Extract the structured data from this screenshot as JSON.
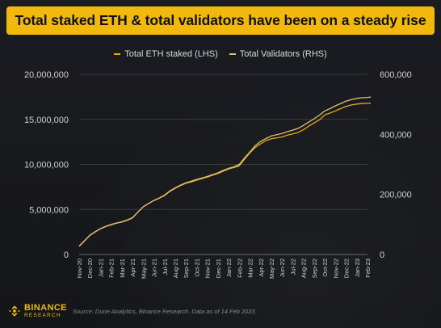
{
  "title": "Total staked ETH & total validators have been on a steady rise",
  "colors": {
    "accent": "#f0b90b",
    "eth_line": "#e6a817",
    "validators_line": "#d9c27a",
    "axis_text": "#d0d0d0"
  },
  "legend": [
    {
      "label": "Total ETH staked (LHS)"
    },
    {
      "label": "Total Validators (RHS)"
    }
  ],
  "footer": {
    "brand": "BINANCE",
    "brand_sub": "RESEARCH",
    "source": "Source: Dune Analytics, Binance Research. Data as of 14 Feb 2023."
  },
  "chart_data": {
    "type": "line",
    "title": "Total staked ETH & total validators have been on a steady rise",
    "grid": true,
    "legend_position": "top-center",
    "x_labels": [
      "Nov-20",
      "Dec-20",
      "Jan-21",
      "Feb-21",
      "Mar-21",
      "Apr-21",
      "May-21",
      "Jun-21",
      "Jul-21",
      "Aug-21",
      "Sep-21",
      "Oct-21",
      "Nov-21",
      "Dec-21",
      "Jan-22",
      "Feb-22",
      "Mar-22",
      "Apr-22",
      "May-22",
      "Jun-22",
      "Jul-22",
      "Aug-22",
      "Sep-22",
      "Oct-22",
      "Nov-22",
      "Dec-22",
      "Jan-23",
      "Feb-23"
    ],
    "y_left": {
      "ylim": [
        0,
        20000000
      ],
      "ticks": [
        0,
        5000000,
        10000000,
        15000000,
        20000000
      ],
      "tick_labels": [
        "0",
        "5,000,000",
        "10,000,000",
        "15,000,000",
        "20,000,000"
      ]
    },
    "y_right": {
      "ylim": [
        0,
        600000
      ],
      "ticks": [
        0,
        200000,
        400000,
        600000
      ],
      "tick_labels": [
        "0",
        "200,000",
        "400,000",
        "600,000"
      ]
    },
    "series": [
      {
        "name": "Total ETH staked (LHS)",
        "axis": "left",
        "x": [
          0,
          0.5,
          1,
          1.5,
          2,
          2.5,
          3,
          3.5,
          4,
          4.5,
          5,
          5.5,
          6,
          6.5,
          7,
          7.5,
          8,
          8.5,
          9,
          9.5,
          10,
          10.5,
          11,
          11.5,
          12,
          12.5,
          13,
          13.5,
          14,
          14.5,
          15,
          15.5,
          16,
          16.5,
          17,
          17.5,
          18,
          18.5,
          19,
          19.5,
          20,
          20.5,
          21,
          21.5,
          22,
          22.5,
          23,
          23.5,
          24,
          24.5,
          25,
          25.5,
          26,
          26.5,
          27,
          27.3
        ],
        "values": [
          900000,
          1500000,
          2100000,
          2500000,
          2850000,
          3100000,
          3300000,
          3480000,
          3600000,
          3800000,
          4050000,
          4700000,
          5300000,
          5650000,
          6000000,
          6250000,
          6550000,
          7000000,
          7350000,
          7650000,
          7900000,
          8050000,
          8250000,
          8420000,
          8600000,
          8800000,
          9000000,
          9250000,
          9500000,
          9650000,
          9850000,
          10600000,
          11300000,
          11900000,
          12300000,
          12650000,
          12850000,
          12950000,
          13050000,
          13250000,
          13380000,
          13550000,
          13850000,
          14250000,
          14600000,
          14950000,
          15500000,
          15700000,
          15950000,
          16200000,
          16450000,
          16600000,
          16700000,
          16750000,
          16780000,
          16800000
        ]
      },
      {
        "name": "Total Validators (RHS)",
        "axis": "right",
        "x": [
          0,
          0.5,
          1,
          1.5,
          2,
          2.5,
          3,
          3.5,
          4,
          4.5,
          5,
          5.5,
          6,
          6.5,
          7,
          7.5,
          8,
          8.5,
          9,
          9.5,
          10,
          10.5,
          11,
          11.5,
          12,
          12.5,
          13,
          13.5,
          14,
          14.5,
          15,
          15.5,
          16,
          16.5,
          17,
          17.5,
          18,
          18.5,
          19,
          19.5,
          20,
          20.5,
          21,
          21.5,
          22,
          22.5,
          23,
          23.5,
          24,
          24.5,
          25,
          25.5,
          26,
          26.5,
          27,
          27.3
        ],
        "values": [
          28000,
          46000,
          64000,
          76000,
          86000,
          94000,
          100000,
          105000,
          109000,
          115000,
          123000,
          141000,
          159000,
          170000,
          180000,
          188000,
          198000,
          212000,
          222000,
          231000,
          239000,
          244000,
          250000,
          255000,
          260000,
          266000,
          272000,
          280000,
          287000,
          292000,
          300000,
          322000,
          342000,
          363000,
          377000,
          386000,
          395000,
          399000,
          403000,
          409000,
          414000,
          420000,
          430000,
          441000,
          452000,
          464000,
          478000,
          486000,
          495000,
          503000,
          511000,
          516000,
          520000,
          522000,
          523000,
          524000
        ]
      }
    ]
  }
}
